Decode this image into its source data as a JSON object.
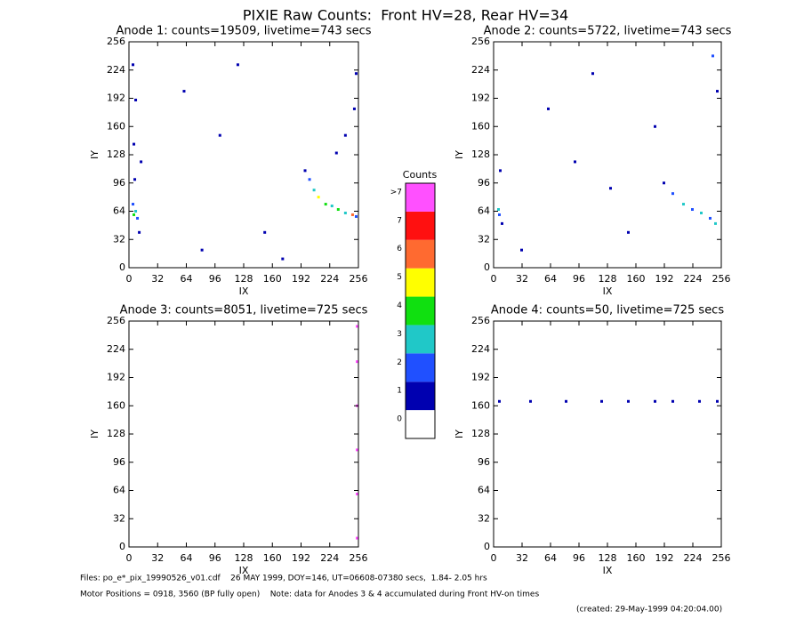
{
  "title": "PIXIE Raw Counts:  Front HV=28, Rear HV=34",
  "chart_data": [
    {
      "type": "heatmap",
      "title": "Anode 1: counts=19509, livetime=743 secs",
      "x_label": "IX",
      "y_label": "IY",
      "xlim": [
        0,
        256
      ],
      "ylim": [
        0,
        256
      ],
      "xticks": [
        0,
        32,
        64,
        96,
        128,
        160,
        192,
        224,
        256
      ],
      "yticks": [
        0,
        32,
        64,
        96,
        128,
        160,
        192,
        224,
        256
      ],
      "x": [
        4,
        6,
        3,
        8,
        5,
        4,
        6,
        3,
        10,
        12,
        200,
        205,
        210,
        218,
        225,
        232,
        240,
        248,
        252,
        195,
        230,
        240,
        250,
        252,
        60,
        100,
        150,
        120,
        80,
        170
      ],
      "y": [
        60,
        64,
        72,
        56,
        100,
        140,
        190,
        230,
        40,
        120,
        100,
        88,
        80,
        72,
        70,
        66,
        62,
        60,
        58,
        110,
        130,
        150,
        180,
        220,
        200,
        150,
        40,
        230,
        20,
        10
      ],
      "values": [
        4,
        3,
        2,
        2,
        1,
        1,
        1,
        1,
        1,
        1,
        2,
        3,
        5,
        4,
        3,
        4,
        3,
        6,
        2,
        1,
        1,
        1,
        1,
        1,
        1,
        1,
        1,
        1,
        1,
        1
      ]
    },
    {
      "type": "heatmap",
      "title": "Anode 2: counts=5722, livetime=743 secs",
      "x_label": "IX",
      "y_label": "IY",
      "xlim": [
        0,
        256
      ],
      "ylim": [
        0,
        256
      ],
      "xticks": [
        0,
        32,
        64,
        96,
        128,
        160,
        192,
        224,
        256
      ],
      "yticks": [
        0,
        32,
        64,
        96,
        128,
        160,
        192,
        224,
        256
      ],
      "x": [
        5,
        4,
        8,
        6,
        190,
        200,
        212,
        222,
        232,
        242,
        248,
        250,
        245,
        60,
        110,
        150,
        30,
        90,
        180,
        130
      ],
      "y": [
        60,
        66,
        50,
        110,
        96,
        84,
        72,
        66,
        62,
        56,
        50,
        200,
        240,
        180,
        220,
        40,
        20,
        120,
        160,
        90
      ],
      "values": [
        2,
        3,
        1,
        1,
        1,
        2,
        3,
        2,
        3,
        2,
        3,
        1,
        2,
        1,
        1,
        1,
        1,
        1,
        1,
        1
      ]
    },
    {
      "type": "heatmap",
      "title": "Anode 3: counts=8051, livetime=725 secs",
      "x_label": "IX",
      "y_label": "IY",
      "xlim": [
        0,
        256
      ],
      "ylim": [
        0,
        256
      ],
      "xticks": [
        0,
        32,
        64,
        96,
        128,
        160,
        192,
        224,
        256
      ],
      "yticks": [
        0,
        32,
        64,
        96,
        128,
        160,
        192,
        224,
        256
      ],
      "x": [
        255,
        255,
        255,
        255,
        255,
        255
      ],
      "y": [
        10,
        60,
        110,
        160,
        210,
        250
      ],
      "values": [
        8,
        8,
        8,
        8,
        8,
        8
      ]
    },
    {
      "type": "heatmap",
      "title": "Anode 4: counts=50, livetime=725 secs",
      "x_label": "IX",
      "y_label": "IY",
      "xlim": [
        0,
        256
      ],
      "ylim": [
        0,
        256
      ],
      "xticks": [
        0,
        32,
        64,
        96,
        128,
        160,
        192,
        224,
        256
      ],
      "yticks": [
        0,
        32,
        64,
        96,
        128,
        160,
        192,
        224,
        256
      ],
      "x": [
        5,
        40,
        80,
        120,
        150,
        180,
        200,
        230,
        250
      ],
      "y": [
        165,
        165,
        165,
        165,
        165,
        165,
        165,
        165,
        165
      ],
      "values": [
        1,
        1,
        1,
        1,
        1,
        1,
        1,
        1,
        1
      ]
    }
  ],
  "colorbar": {
    "title": "Counts",
    "labels": [
      "0",
      "1",
      "2",
      "3",
      "4",
      "5",
      "6",
      "7",
      ">7"
    ],
    "colors": [
      "#ffffff",
      "#0000b0",
      "#2050ff",
      "#20c8c8",
      "#10e010",
      "#ffff00",
      "#ff6a30",
      "#ff1010",
      "#ff50ff"
    ]
  },
  "footer": [
    "Files: po_e*_pix_19990526_v01.cdf    26 MAY 1999, DOY=146, UT=06608-07380 secs,  1.84- 2.05 hrs",
    "Motor Positions = 0918, 3560 (BP fully open)    Note: data for Anodes 3 & 4 accumulated during Front HV-on times",
    "(created: 29-May-1999 04:20:04.00)"
  ]
}
